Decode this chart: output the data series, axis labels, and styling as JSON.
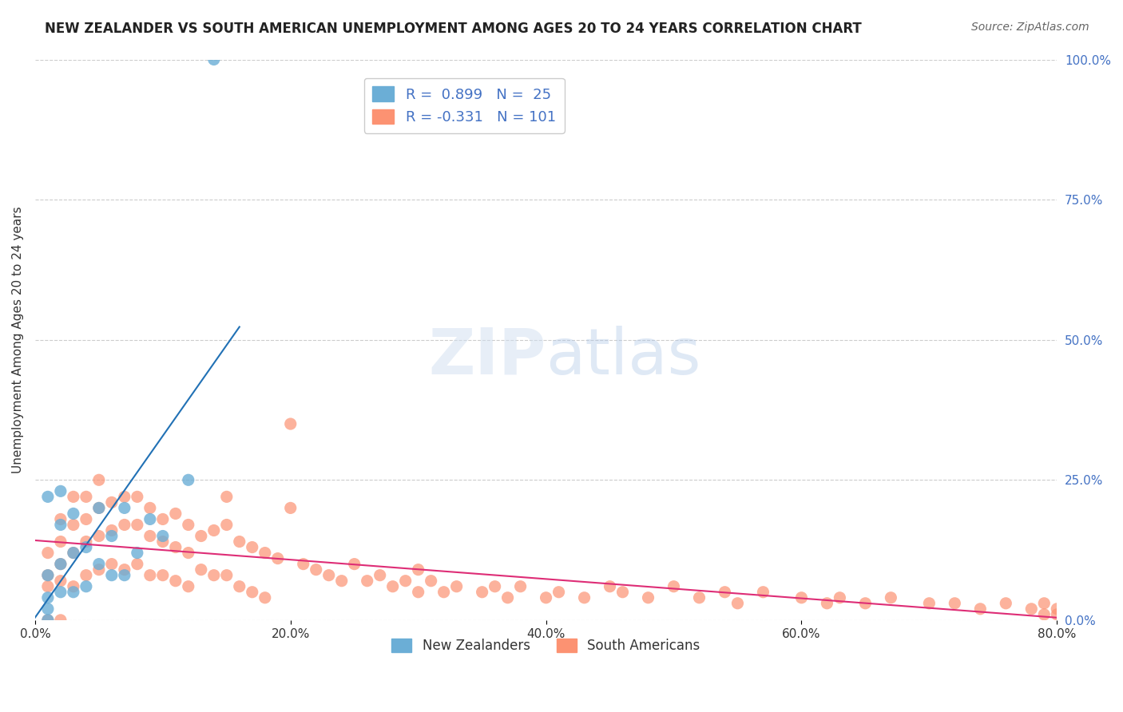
{
  "title": "NEW ZEALANDER VS SOUTH AMERICAN UNEMPLOYMENT AMONG AGES 20 TO 24 YEARS CORRELATION CHART",
  "source": "Source: ZipAtlas.com",
  "ylabel": "Unemployment Among Ages 20 to 24 years",
  "xlabel_bottom": "",
  "xlim": [
    0.0,
    0.8
  ],
  "ylim": [
    0.0,
    1.0
  ],
  "xticks": [
    0.0,
    0.2,
    0.4,
    0.6,
    0.8
  ],
  "xticklabels": [
    "0.0%",
    "20.0%",
    "40.0%",
    "60.0%",
    "80.0%"
  ],
  "yticks_right": [
    0.0,
    0.25,
    0.5,
    0.75,
    1.0
  ],
  "yticklabels_right": [
    "0.0%",
    "25.0%",
    "50.0%",
    "75.0%",
    "100.0%"
  ],
  "nz_color": "#6baed6",
  "nz_color_line": "#2171b5",
  "sa_color": "#fc9272",
  "sa_color_line": "#de2d76",
  "nz_R": 0.899,
  "nz_N": 25,
  "sa_R": -0.331,
  "sa_N": 101,
  "background_color": "#ffffff",
  "grid_color": "#cccccc",
  "watermark": "ZIPatlas",
  "nz_points_x": [
    0.01,
    0.01,
    0.01,
    0.01,
    0.01,
    0.02,
    0.02,
    0.02,
    0.02,
    0.03,
    0.03,
    0.03,
    0.04,
    0.04,
    0.05,
    0.05,
    0.06,
    0.06,
    0.07,
    0.07,
    0.08,
    0.09,
    0.1,
    0.12,
    0.14
  ],
  "nz_points_y": [
    0.0,
    0.02,
    0.04,
    0.08,
    0.22,
    0.05,
    0.1,
    0.17,
    0.23,
    0.05,
    0.12,
    0.19,
    0.06,
    0.13,
    0.1,
    0.2,
    0.08,
    0.15,
    0.08,
    0.2,
    0.12,
    0.18,
    0.15,
    0.25,
    1.0
  ],
  "sa_points_x": [
    0.01,
    0.01,
    0.01,
    0.01,
    0.02,
    0.02,
    0.02,
    0.02,
    0.02,
    0.03,
    0.03,
    0.03,
    0.03,
    0.04,
    0.04,
    0.04,
    0.04,
    0.05,
    0.05,
    0.05,
    0.05,
    0.06,
    0.06,
    0.06,
    0.07,
    0.07,
    0.07,
    0.08,
    0.08,
    0.08,
    0.09,
    0.09,
    0.09,
    0.1,
    0.1,
    0.1,
    0.11,
    0.11,
    0.11,
    0.12,
    0.12,
    0.12,
    0.13,
    0.13,
    0.14,
    0.14,
    0.15,
    0.15,
    0.15,
    0.16,
    0.16,
    0.17,
    0.17,
    0.18,
    0.18,
    0.19,
    0.2,
    0.2,
    0.21,
    0.22,
    0.23,
    0.24,
    0.25,
    0.26,
    0.27,
    0.28,
    0.29,
    0.3,
    0.3,
    0.31,
    0.32,
    0.33,
    0.35,
    0.36,
    0.37,
    0.38,
    0.4,
    0.41,
    0.43,
    0.45,
    0.46,
    0.48,
    0.5,
    0.52,
    0.54,
    0.55,
    0.57,
    0.6,
    0.62,
    0.63,
    0.65,
    0.67,
    0.7,
    0.72,
    0.74,
    0.76,
    0.78,
    0.79,
    0.79,
    0.8,
    0.8
  ],
  "sa_points_y": [
    0.12,
    0.08,
    0.06,
    0.0,
    0.18,
    0.14,
    0.1,
    0.07,
    0.0,
    0.22,
    0.17,
    0.12,
    0.06,
    0.22,
    0.18,
    0.14,
    0.08,
    0.25,
    0.2,
    0.15,
    0.09,
    0.21,
    0.16,
    0.1,
    0.22,
    0.17,
    0.09,
    0.22,
    0.17,
    0.1,
    0.2,
    0.15,
    0.08,
    0.18,
    0.14,
    0.08,
    0.19,
    0.13,
    0.07,
    0.17,
    0.12,
    0.06,
    0.15,
    0.09,
    0.16,
    0.08,
    0.17,
    0.22,
    0.08,
    0.14,
    0.06,
    0.13,
    0.05,
    0.12,
    0.04,
    0.11,
    0.2,
    0.35,
    0.1,
    0.09,
    0.08,
    0.07,
    0.1,
    0.07,
    0.08,
    0.06,
    0.07,
    0.09,
    0.05,
    0.07,
    0.05,
    0.06,
    0.05,
    0.06,
    0.04,
    0.06,
    0.04,
    0.05,
    0.04,
    0.06,
    0.05,
    0.04,
    0.06,
    0.04,
    0.05,
    0.03,
    0.05,
    0.04,
    0.03,
    0.04,
    0.03,
    0.04,
    0.03,
    0.03,
    0.02,
    0.03,
    0.02,
    0.03,
    0.01,
    0.02,
    0.01
  ]
}
